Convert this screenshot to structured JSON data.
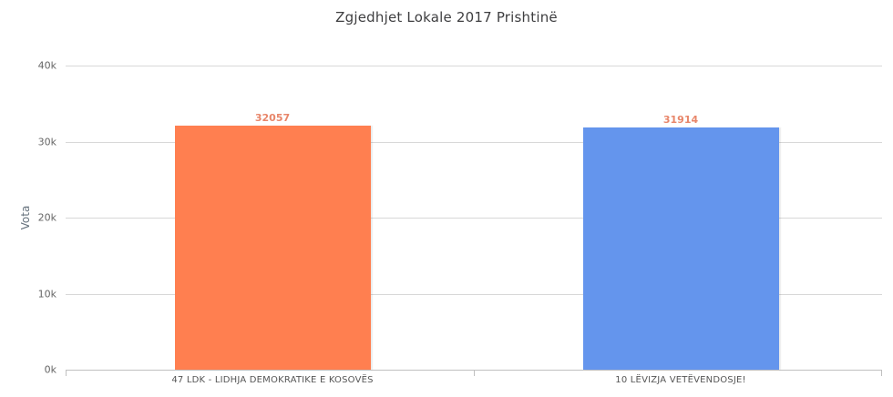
{
  "chart_data": {
    "type": "bar",
    "title": "Zgjedhjet Lokale 2017 Prishtinë",
    "xlabel": "",
    "ylabel": "Vota",
    "categories": [
      "47 LDK - LIDHJA DEMOKRATIKE E KOSOVËS",
      "10 LËVIZJA VETËVENDOSJE!"
    ],
    "values": [
      32057,
      31914
    ],
    "bar_colors": [
      "#ff7f50",
      "#6495ed"
    ],
    "data_labels": [
      "32057",
      "31914"
    ],
    "data_label_color": "#e8866a",
    "ylim": [
      0,
      40000
    ],
    "yticks": [
      {
        "value": 0,
        "label": "0k"
      },
      {
        "value": 10000,
        "label": "10k"
      },
      {
        "value": 20000,
        "label": "20k"
      },
      {
        "value": 30000,
        "label": "30k"
      },
      {
        "value": 40000,
        "label": "40k"
      }
    ],
    "grid": true,
    "legend": null
  }
}
